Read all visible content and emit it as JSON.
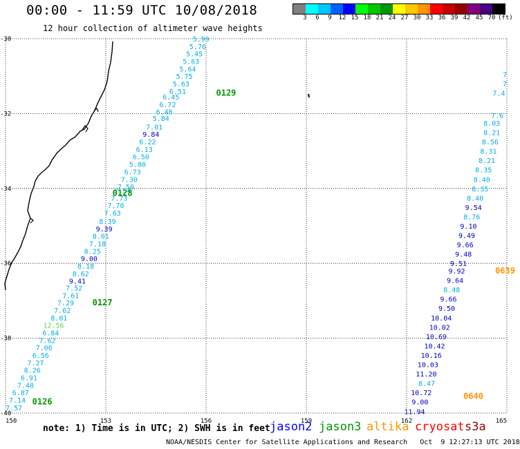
{
  "title": "00:00 - 11:59 UTC 10/08/2018",
  "subtitle": "12 hour collection of altimeter wave heights",
  "colorbar": {
    "colors": [
      "#808080",
      "#00ffff",
      "#00c8ff",
      "#0064ff",
      "#0000ff",
      "#00ff00",
      "#00c800",
      "#009600",
      "#ffff00",
      "#ffc800",
      "#ff9600",
      "#ff0000",
      "#c80000",
      "#960000",
      "#800080",
      "#4b0082",
      "#000000"
    ],
    "labels": [
      "3",
      "6",
      "9",
      "12",
      "15",
      "18",
      "21",
      "24",
      "27",
      "30",
      "33",
      "36",
      "39",
      "42",
      "45",
      "70",
      "(ft)"
    ]
  },
  "axes": {
    "lon_ticks": [
      "150",
      "153",
      "156",
      "159",
      "162",
      "165"
    ],
    "lat_ticks": [
      "-30",
      "-32",
      "-34",
      "-36",
      "-38",
      "-40"
    ]
  },
  "note": "note: 1) Time is in UTC; 2) SWH is in feet",
  "legend": [
    {
      "name": "jason2",
      "color": "#0000ff"
    },
    {
      "name": "jason3",
      "color": "#009600"
    },
    {
      "name": "altika",
      "color": "#ff9600"
    },
    {
      "name": "cryosat",
      "color": "#ff0000"
    },
    {
      "name": "s3a",
      "color": "#960000"
    }
  ],
  "credit": "NOAA/NESDIS Center for Satellite Applications and Research   Oct  9 12:27:13 UTC 2018",
  "passes": [
    {
      "label": "0129",
      "color": "#009600",
      "lon": 156.3,
      "lat": -31.45
    },
    {
      "label": "0128",
      "color": "#009600",
      "lon": 153.2,
      "lat": -34.12
    },
    {
      "label": "0127",
      "color": "#009600",
      "lon": 152.6,
      "lat": -37.05
    },
    {
      "label": "0126",
      "color": "#009600",
      "lon": 150.8,
      "lat": -39.7
    },
    {
      "label": "0639",
      "color": "#ff9600",
      "lon": 164.65,
      "lat": -36.2
    },
    {
      "label": "0640",
      "color": "#ff9600",
      "lon": 163.7,
      "lat": -39.55
    }
  ],
  "observations": [
    {
      "v": "5.99",
      "lon": 156.1,
      "lat": -30.0
    },
    {
      "v": "5.76",
      "lon": 156.0,
      "lat": -30.2
    },
    {
      "v": "5.45",
      "lon": 155.9,
      "lat": -30.4
    },
    {
      "v": "5.63",
      "lon": 155.8,
      "lat": -30.6
    },
    {
      "v": "5.64",
      "lon": 155.7,
      "lat": -30.8
    },
    {
      "v": "5.75",
      "lon": 155.6,
      "lat": -31.0
    },
    {
      "v": "5.63",
      "lon": 155.5,
      "lat": -31.2
    },
    {
      "v": "6.51",
      "lon": 155.4,
      "lat": -31.4
    },
    {
      "v": "6.45",
      "lon": 155.2,
      "lat": -31.55
    },
    {
      "v": "6.72",
      "lon": 155.1,
      "lat": -31.75
    },
    {
      "v": "6.48",
      "lon": 155.0,
      "lat": -31.95
    },
    {
      "v": "5.84",
      "lon": 154.9,
      "lat": -32.12
    },
    {
      "v": "7.01",
      "lon": 154.7,
      "lat": -32.35
    },
    {
      "v": "9.84",
      "lon": 154.6,
      "lat": -32.55
    },
    {
      "v": "6.22",
      "lon": 154.5,
      "lat": -32.75
    },
    {
      "v": "6.13",
      "lon": 154.4,
      "lat": -32.95
    },
    {
      "v": "6.50",
      "lon": 154.3,
      "lat": -33.15
    },
    {
      "v": "5.80",
      "lon": 154.2,
      "lat": -33.35
    },
    {
      "v": "6.73",
      "lon": 154.05,
      "lat": -33.55
    },
    {
      "v": "7.30",
      "lon": 153.95,
      "lat": -33.75
    },
    {
      "v": "7.50",
      "lon": 153.85,
      "lat": -33.95
    },
    {
      "v": "7.54",
      "lon": 153.75,
      "lat": -34.05
    },
    {
      "v": "7.73",
      "lon": 153.65,
      "lat": -34.25
    },
    {
      "v": "7.70",
      "lon": 153.55,
      "lat": -34.45
    },
    {
      "v": "7.63",
      "lon": 153.45,
      "lat": -34.65
    },
    {
      "v": "8.39",
      "lon": 153.3,
      "lat": -34.87
    },
    {
      "v": "9.39",
      "lon": 153.2,
      "lat": -35.07
    },
    {
      "v": "8.01",
      "lon": 153.1,
      "lat": -35.27
    },
    {
      "v": "7.18",
      "lon": 153.0,
      "lat": -35.47
    },
    {
      "v": "8.25",
      "lon": 152.85,
      "lat": -35.67
    },
    {
      "v": "9.00",
      "lon": 152.75,
      "lat": -35.87
    },
    {
      "v": "8.18",
      "lon": 152.65,
      "lat": -36.07
    },
    {
      "v": "8.62",
      "lon": 152.5,
      "lat": -36.27
    },
    {
      "v": "9.41",
      "lon": 152.4,
      "lat": -36.47
    },
    {
      "v": "7.52",
      "lon": 152.3,
      "lat": -36.65
    },
    {
      "v": "7.61",
      "lon": 152.2,
      "lat": -36.85
    },
    {
      "v": "7.29",
      "lon": 152.05,
      "lat": -37.05
    },
    {
      "v": "7.62",
      "lon": 151.95,
      "lat": -37.25
    },
    {
      "v": "8.01",
      "lon": 151.85,
      "lat": -37.45
    },
    {
      "v": "12.56",
      "lon": 151.75,
      "lat": -37.65
    },
    {
      "v": "6.84",
      "lon": 151.6,
      "lat": -37.85
    },
    {
      "v": "7.62",
      "lon": 151.5,
      "lat": -38.05
    },
    {
      "v": "7.06",
      "lon": 151.4,
      "lat": -38.25
    },
    {
      "v": "6.56",
      "lon": 151.3,
      "lat": -38.45
    },
    {
      "v": "7.27",
      "lon": 151.15,
      "lat": -38.65
    },
    {
      "v": "8.26",
      "lon": 151.05,
      "lat": -38.85
    },
    {
      "v": "6.91",
      "lon": 150.95,
      "lat": -39.05
    },
    {
      "v": "7.48",
      "lon": 150.85,
      "lat": -39.25
    },
    {
      "v": "6.87",
      "lon": 150.7,
      "lat": -39.45
    },
    {
      "v": "7.14",
      "lon": 150.6,
      "lat": -39.65
    },
    {
      "v": "7.57",
      "lon": 150.5,
      "lat": -39.85
    },
    {
      "v": "7",
      "lon": 165.0,
      "lat": -30.95
    },
    {
      "v": "7",
      "lon": 165.0,
      "lat": -31.2
    },
    {
      "v": "7.4",
      "lon": 164.95,
      "lat": -31.45
    },
    {
      "v": "7.6",
      "lon": 164.9,
      "lat": -32.05
    },
    {
      "v": "8.03",
      "lon": 164.8,
      "lat": -32.25
    },
    {
      "v": "8.21",
      "lon": 164.8,
      "lat": -32.5
    },
    {
      "v": "8.56",
      "lon": 164.75,
      "lat": -32.75
    },
    {
      "v": "8.31",
      "lon": 164.7,
      "lat": -33.0
    },
    {
      "v": "8.21",
      "lon": 164.65,
      "lat": -33.25
    },
    {
      "v": "8.35",
      "lon": 164.55,
      "lat": -33.5
    },
    {
      "v": "8.40",
      "lon": 164.5,
      "lat": -33.75
    },
    {
      "v": "8.35",
      "lon": 164.45,
      "lat": -34.0
    },
    {
      "v": "8.40",
      "lon": 164.3,
      "lat": -34.25
    },
    {
      "v": "9.54",
      "lon": 164.25,
      "lat": -34.5
    },
    {
      "v": "8.76",
      "lon": 164.2,
      "lat": -34.75
    },
    {
      "v": "9.10",
      "lon": 164.1,
      "lat": -35.0
    },
    {
      "v": "9.49",
      "lon": 164.05,
      "lat": -35.25
    },
    {
      "v": "9.66",
      "lon": 164.0,
      "lat": -35.5
    },
    {
      "v": "9.48",
      "lon": 163.95,
      "lat": -35.75
    },
    {
      "v": "9.51",
      "lon": 163.8,
      "lat": -36.0
    },
    {
      "v": "9.92",
      "lon": 163.75,
      "lat": -36.2
    },
    {
      "v": "9.64",
      "lon": 163.7,
      "lat": -36.45
    },
    {
      "v": "8.48",
      "lon": 163.6,
      "lat": -36.7
    },
    {
      "v": "9.66",
      "lon": 163.5,
      "lat": -36.95
    },
    {
      "v": "9.50",
      "lon": 163.45,
      "lat": -37.2
    },
    {
      "v": "10.04",
      "lon": 163.35,
      "lat": -37.45
    },
    {
      "v": "10.02",
      "lon": 163.3,
      "lat": -37.7
    },
    {
      "v": "10.69",
      "lon": 163.2,
      "lat": -37.95
    },
    {
      "v": "10.42",
      "lon": 163.15,
      "lat": -38.2
    },
    {
      "v": "10.16",
      "lon": 163.05,
      "lat": -38.45
    },
    {
      "v": "10.03",
      "lon": 162.95,
      "lat": -38.7
    },
    {
      "v": "11.20",
      "lon": 162.9,
      "lat": -38.95
    },
    {
      "v": "8.47",
      "lon": 162.85,
      "lat": -39.2
    },
    {
      "v": "10.72",
      "lon": 162.75,
      "lat": -39.45
    },
    {
      "v": "9.00",
      "lon": 162.65,
      "lat": -39.7
    },
    {
      "v": "11.94",
      "lon": 162.55,
      "lat": -39.95
    }
  ]
}
